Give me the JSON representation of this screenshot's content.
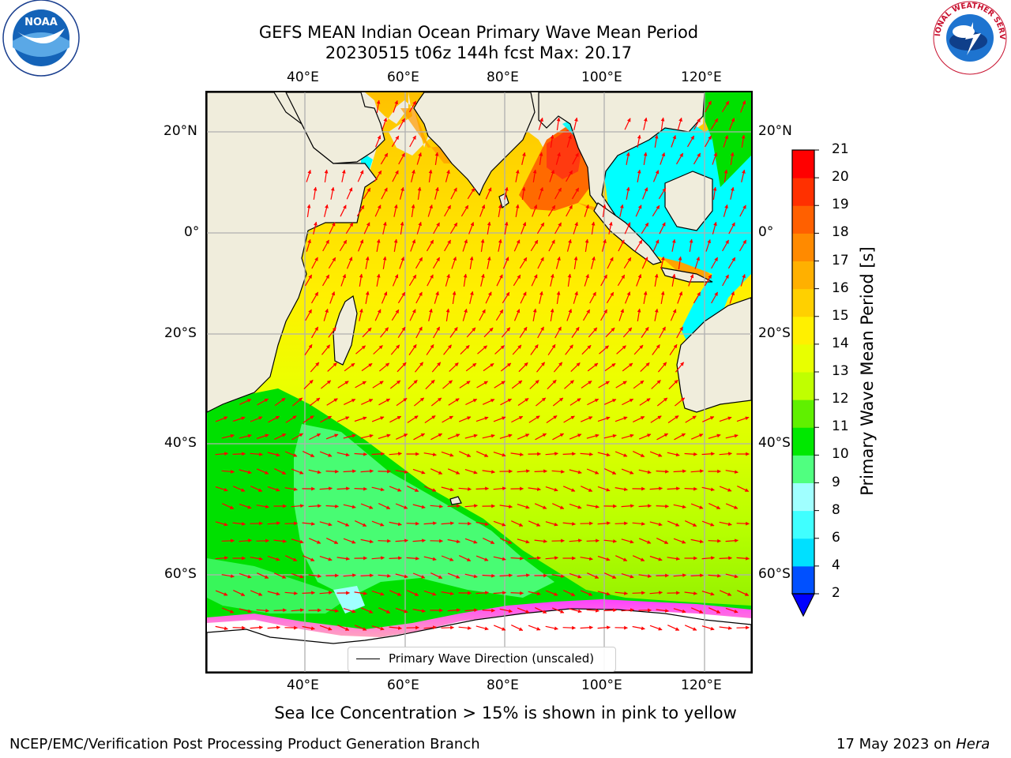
{
  "header": {
    "title_line1": "GEFS MEAN Indian Ocean Primary Wave Mean Period",
    "title_line2": "20230515 t06z 144h fcst   Max: 20.17"
  },
  "logos": {
    "left": "NOAA",
    "right": "NATIONAL WEATHER SERVICE"
  },
  "map": {
    "lon_ticks": [
      "40°E",
      "60°E",
      "80°E",
      "100°E",
      "120°E"
    ],
    "lat_ticks": [
      "20°N",
      "0°",
      "20°S",
      "40°S",
      "60°S"
    ],
    "legend_label": "Primary Wave Direction (unscaled)",
    "colors": {
      "land": "#f0eddc",
      "ice": "#ffffff",
      "arrow": "#ff0000",
      "grid": "#b0b0b0"
    }
  },
  "colorbar": {
    "label": "Primary Wave Mean Period [s]",
    "ticks": [
      "2",
      "4",
      "6",
      "8",
      "9",
      "10",
      "11",
      "12",
      "13",
      "14",
      "15",
      "16",
      "17",
      "18",
      "19",
      "20",
      "21"
    ],
    "colors": [
      "#0050ff",
      "#00e0ff",
      "#40ffff",
      "#a0ffff",
      "#50ff80",
      "#00e800",
      "#60f000",
      "#c0ff00",
      "#e8ff00",
      "#fff000",
      "#ffd000",
      "#ffb000",
      "#ff8a00",
      "#ff6000",
      "#ff3000",
      "#ff0000"
    ]
  },
  "footer": {
    "note": "Sea Ice Concentration > 15% is shown in pink to yellow",
    "producer": "NCEP/EMC/Verification Post Processing Product Generation Branch",
    "date": "17 May 2023 on ",
    "machine": "Hera"
  }
}
